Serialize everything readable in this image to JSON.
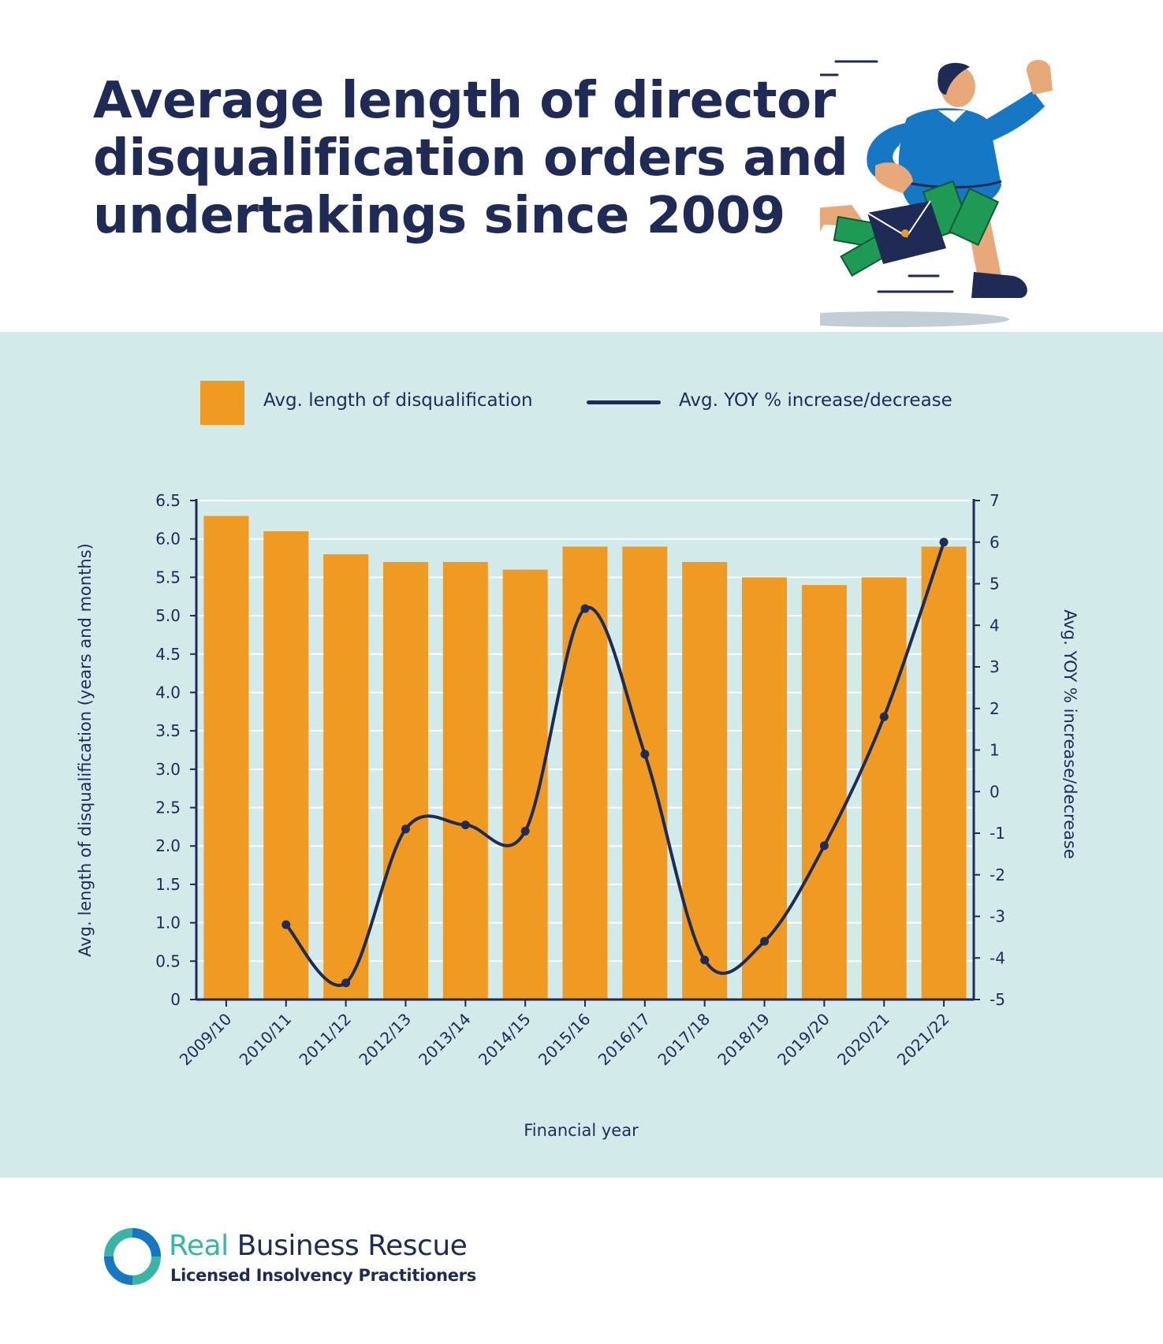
{
  "title_lines": [
    "Average length of director",
    "disqualification orders and",
    "undertakings since 2009"
  ],
  "legend": {
    "bar_label": "Avg. length of disqualification",
    "line_label": "Avg. YOY % increase/decrease"
  },
  "colors": {
    "bar": "#ef9a22",
    "line": "#1f2a55",
    "panel": "#d3eaea",
    "grid": "#ffffff"
  },
  "brand": {
    "name_first": "Real",
    "name_rest": "Business Rescue",
    "subtitle": "Licensed Insolvency Practitioners"
  },
  "illustration": "running-businessperson-with-briefcase-and-cash",
  "chart_data": {
    "type": "bar",
    "categories": [
      "2009/10",
      "2010/11",
      "2011/12",
      "2012/13",
      "2013/14",
      "2014/15",
      "2015/16",
      "2016/17",
      "2017/18",
      "2018/19",
      "2019/20",
      "2020/21",
      "2021/22"
    ],
    "series": [
      {
        "name": "Avg. length of disqualification",
        "type": "bar",
        "axis": "left",
        "values": [
          6.3,
          6.1,
          5.8,
          5.7,
          5.7,
          5.6,
          5.9,
          5.9,
          5.7,
          5.5,
          5.4,
          5.5,
          5.9
        ]
      },
      {
        "name": "Avg. YOY % increase/decrease",
        "type": "line",
        "axis": "right",
        "values": [
          null,
          -3.2,
          -4.6,
          -0.9,
          -0.8,
          -0.95,
          4.4,
          0.9,
          -4.05,
          -3.6,
          -1.3,
          1.8,
          6.0
        ]
      }
    ],
    "xlabel": "Financial year",
    "ylabel": "Avg.  length of disqualification (years and months)",
    "y2label": "Avg. YOY % increase/decrease",
    "ylim": [
      0,
      6.5
    ],
    "y2lim": [
      -5,
      7
    ],
    "yticks": [
      "0",
      "0.5",
      "1.0",
      "1.5",
      "2.0",
      "2.5",
      "3.0",
      "3.5",
      "4.0",
      "4.5",
      "5.0",
      "5.5",
      "6.0",
      "6.5"
    ],
    "y2ticks": [
      "-5",
      "-4",
      "-3",
      "-2",
      "-1",
      "0",
      "1",
      "2",
      "3",
      "4",
      "5",
      "6",
      "7"
    ],
    "grid": true,
    "legend_position": "top"
  }
}
